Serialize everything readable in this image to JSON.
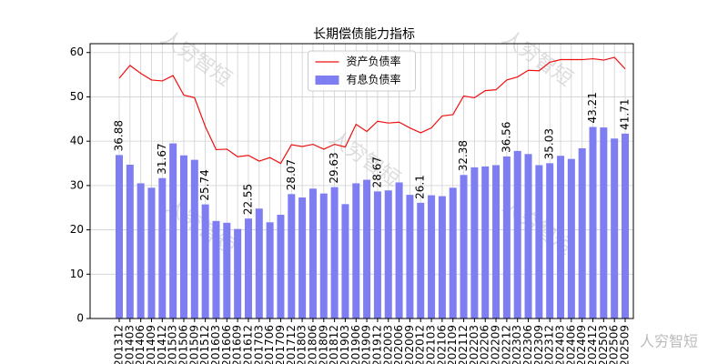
{
  "chart_data": {
    "type": "bar_line",
    "title": "长期偿债能力指标",
    "categories": [
      "201312",
      "201403",
      "201406",
      "201409",
      "201412",
      "201503",
      "201506",
      "201509",
      "201512",
      "201603",
      "201606",
      "201609",
      "201612",
      "201703",
      "201706",
      "201709",
      "201712",
      "201803",
      "201806",
      "201809",
      "201812",
      "201903",
      "201906",
      "201909",
      "201912",
      "202003",
      "202006",
      "202009",
      "202012",
      "202103",
      "202106",
      "202109",
      "202112",
      "202203",
      "202206",
      "202209",
      "202212",
      "202303",
      "202306",
      "202309",
      "202312",
      "202403",
      "202406",
      "202409",
      "202412",
      "202503",
      "202506",
      "202509"
    ],
    "series": [
      {
        "name": "资产负债率",
        "kind": "line",
        "color": "#ee1111",
        "values": [
          54.2,
          57.1,
          55.3,
          53.8,
          53.6,
          54.8,
          50.4,
          49.8,
          43.3,
          38.1,
          38.2,
          36.5,
          36.8,
          35.5,
          36.3,
          35.0,
          39.2,
          38.8,
          39.3,
          38.2,
          39.3,
          38.7,
          43.8,
          42.2,
          44.5,
          44.1,
          44.3,
          43.0,
          41.9,
          43.0,
          45.7,
          46.0,
          50.2,
          49.8,
          51.4,
          51.6,
          53.8,
          54.5,
          56.0,
          55.9,
          57.8,
          58.4,
          58.4,
          58.4,
          58.6,
          58.3,
          58.9,
          56.3
        ]
      },
      {
        "name": "有息负债率",
        "kind": "bar",
        "color": "#7e7ef2",
        "values": [
          36.88,
          34.7,
          30.5,
          29.5,
          31.67,
          39.5,
          36.8,
          35.8,
          25.74,
          22.0,
          21.6,
          20.2,
          22.55,
          24.8,
          21.7,
          23.4,
          28.07,
          27.3,
          29.3,
          28.2,
          29.63,
          25.8,
          30.5,
          31.3,
          28.67,
          28.9,
          30.7,
          27.9,
          26.1,
          27.8,
          27.6,
          29.5,
          32.38,
          34.1,
          34.3,
          34.6,
          36.56,
          37.8,
          37.1,
          34.6,
          35.03,
          36.7,
          36.0,
          38.4,
          43.21,
          43.1,
          40.6,
          41.71
        ],
        "value_labels": [
          "36.88",
          null,
          null,
          null,
          "31.67",
          null,
          null,
          null,
          "25.74",
          null,
          null,
          null,
          "22.55",
          null,
          null,
          null,
          "28.07",
          null,
          null,
          null,
          "29.63",
          null,
          null,
          null,
          "28.67",
          null,
          null,
          null,
          "26.1",
          null,
          null,
          null,
          "32.38",
          null,
          null,
          null,
          "36.56",
          null,
          null,
          null,
          "35.03",
          null,
          null,
          null,
          "43.21",
          null,
          null,
          "41.71"
        ]
      }
    ],
    "ylim": [
      0,
      62
    ],
    "yticks": [
      0,
      10,
      20,
      30,
      40,
      50,
      60
    ],
    "grid": true,
    "legend": "upper center",
    "watermark": "人穷智短"
  }
}
